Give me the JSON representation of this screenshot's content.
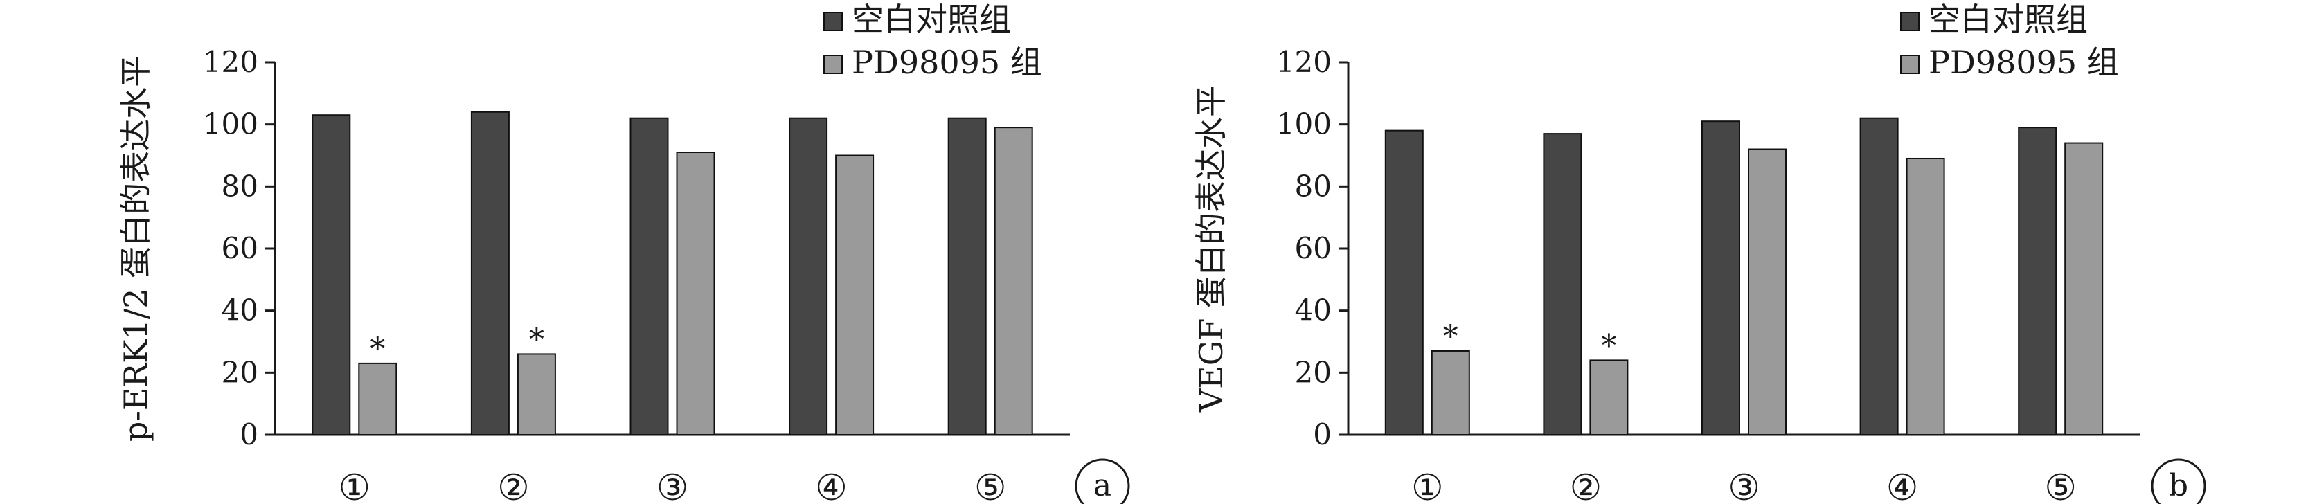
{
  "colors": {
    "control": "#464646",
    "treated": "#9a9a9a",
    "axis": "#1a1a1a"
  },
  "chart_data": [
    {
      "type": "bar",
      "panel_label": "a",
      "ylabel": "p-ERK1/2 蛋白的表达水平",
      "categories": [
        "①",
        "②",
        "③",
        "④",
        "⑤"
      ],
      "ylim": [
        0,
        120
      ],
      "yticks": [
        0,
        20,
        40,
        60,
        80,
        100,
        120
      ],
      "legend": "top-right",
      "series": [
        {
          "name": "空白对照组",
          "values": [
            103,
            104,
            102,
            102,
            102
          ]
        },
        {
          "name": "PD98095 组",
          "values": [
            23,
            26,
            91,
            90,
            99
          ]
        }
      ],
      "annotations": [
        {
          "text": "*",
          "category": "①",
          "series": 1
        },
        {
          "text": "*",
          "category": "②",
          "series": 1
        }
      ]
    },
    {
      "type": "bar",
      "panel_label": "b",
      "ylabel": "VEGF 蛋白的表达水平",
      "categories": [
        "①",
        "②",
        "③",
        "④",
        "⑤"
      ],
      "ylim": [
        0,
        120
      ],
      "yticks": [
        0,
        20,
        40,
        60,
        80,
        100,
        120
      ],
      "legend": "top-right",
      "series": [
        {
          "name": "空白对照组",
          "values": [
            98,
            97,
            101,
            102,
            99
          ]
        },
        {
          "name": "PD98095 组",
          "values": [
            27,
            24,
            92,
            89,
            94
          ]
        }
      ],
      "annotations": [
        {
          "text": "*",
          "category": "①",
          "series": 1
        },
        {
          "text": "*",
          "category": "②",
          "series": 1
        }
      ]
    }
  ]
}
